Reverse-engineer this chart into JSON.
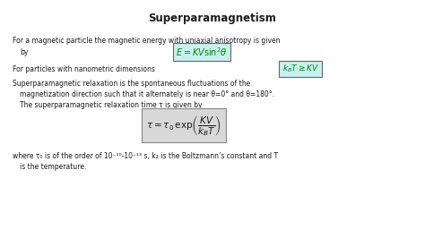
{
  "title": "Superparamagnetism",
  "background_color": "#ffffff",
  "text_color": "#1a1a1a",
  "eq1_text": "$E = KV\\sin^2\\!\\theta$",
  "eq2_text": "$k_B T \\geq KV$",
  "eq3_text": "$\\tau = \\tau_0\\,\\exp\\!\\left(\\dfrac{KV}{k_B T}\\right)$",
  "eq1_facecolor": "#c8f0f0",
  "eq2_facecolor": "#c8f0f0",
  "eq3_facecolor": "#d8d8d8",
  "eq1_edgecolor": "#666666",
  "eq2_edgecolor": "#666666",
  "eq3_edgecolor": "#888888",
  "eq1_textcolor": "#008800",
  "eq2_textcolor": "#008800",
  "eq3_textcolor": "#1a1a1a",
  "title_fontsize": 8.5,
  "body_fontsize": 5.5,
  "eq1_fontsize": 7.0,
  "eq2_fontsize": 6.5,
  "eq3_fontsize": 7.5
}
